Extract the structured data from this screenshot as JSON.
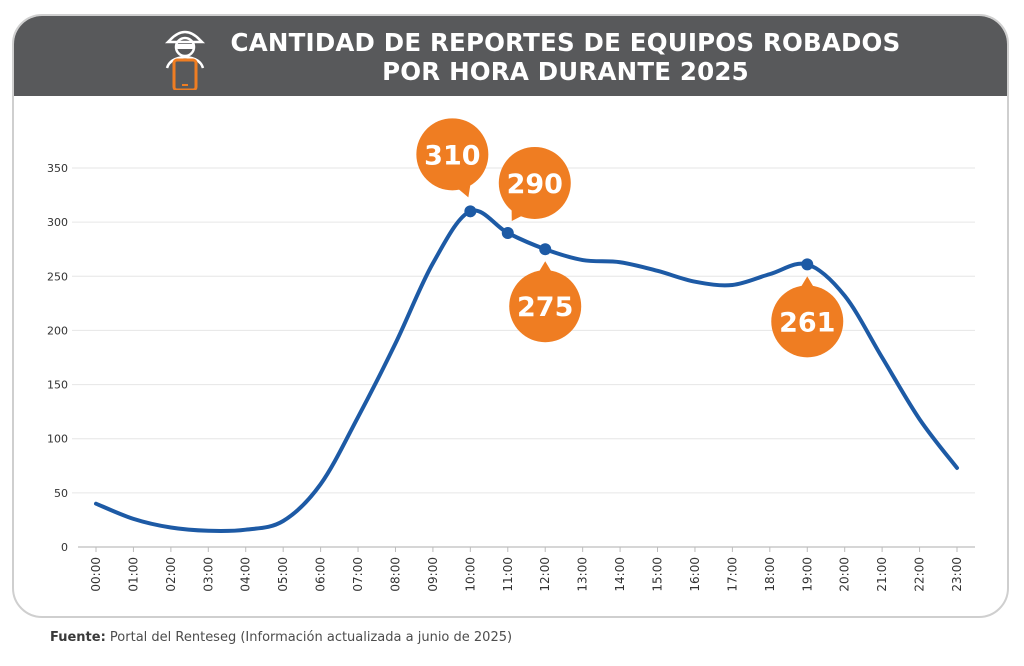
{
  "header": {
    "title_line1": "CANTIDAD DE REPORTES DE EQUIPOS ROBADOS",
    "title_line2": "POR HORA DURANTE 2025",
    "icon": "thief-with-phone-icon"
  },
  "colors": {
    "header_bg": "#58595b",
    "line": "#1d5aa5",
    "bubble": "#ef7d22",
    "grid": "#e6e6e6"
  },
  "chart_data": {
    "type": "line",
    "title": "CANTIDAD DE REPORTES DE EQUIPOS ROBADOS POR HORA DURANTE 2025",
    "categories": [
      "00:00",
      "01:00",
      "02:00",
      "03:00",
      "04:00",
      "05:00",
      "06:00",
      "07:00",
      "08:00",
      "09:00",
      "10:00",
      "11:00",
      "12:00",
      "13:00",
      "14:00",
      "15:00",
      "16:00",
      "17:00",
      "18:00",
      "19:00",
      "20:00",
      "21:00",
      "22:00",
      "23:00"
    ],
    "series": [
      {
        "values": [
          40,
          26,
          18,
          15,
          16,
          24,
          58,
          120,
          188,
          262,
          310,
          290,
          275,
          265,
          263,
          255,
          245,
          242,
          252,
          261,
          232,
          175,
          118,
          73
        ]
      }
    ],
    "ylim": [
      0,
      350
    ],
    "yticks": [
      "0",
      "50",
      "100",
      "150",
      "200",
      "250",
      "300",
      "350"
    ],
    "grid": true,
    "legend": "none",
    "annotations": [
      {
        "category": "10:00",
        "label": "310"
      },
      {
        "category": "11:00",
        "label": "290"
      },
      {
        "category": "12:00",
        "label": "275"
      },
      {
        "category": "19:00",
        "label": "261"
      }
    ]
  },
  "source": {
    "label": "Fuente:",
    "text": " Portal del Renteseg (Información actualizada a junio de 2025)"
  }
}
